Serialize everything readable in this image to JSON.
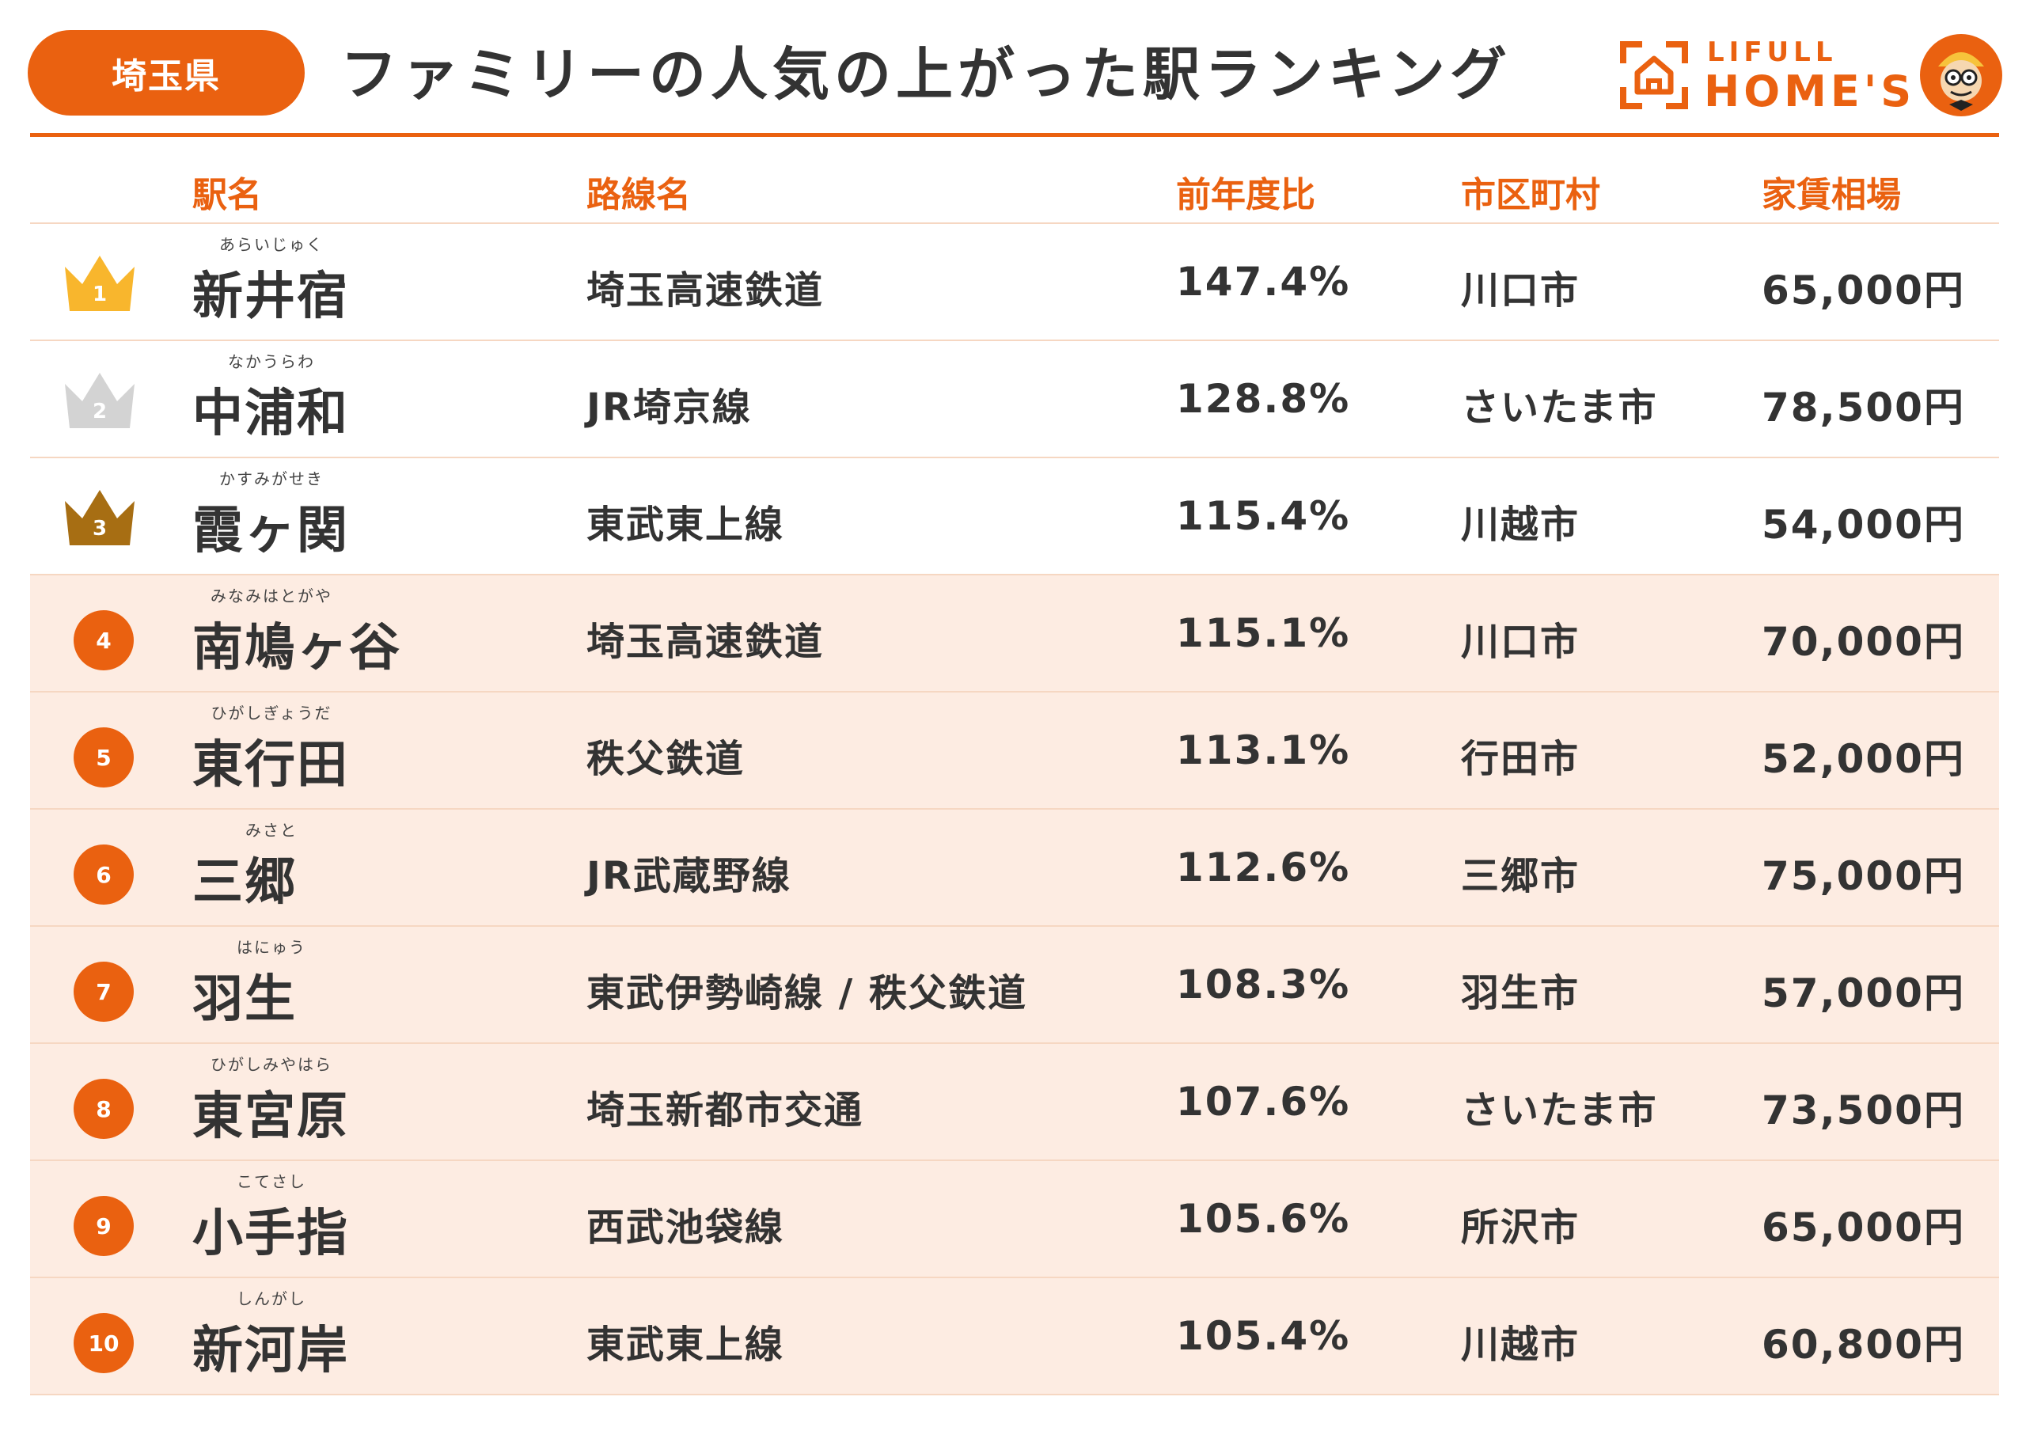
{
  "header": {
    "prefecture": "埼玉県",
    "title": "ファミリーの人気の上がった駅ランキング",
    "logo_top": "LIFULL",
    "logo_main": "HOME'S"
  },
  "columns": {
    "station": "駅名",
    "line": "路線名",
    "ratio": "前年度比",
    "city": "市区町村",
    "rent": "家賃相場"
  },
  "colors": {
    "accent": "#ea6110",
    "row_shade": "#fdece2",
    "gold": "#f8b62d",
    "silver": "#d3d3d3",
    "bronze": "#a76e13"
  },
  "rows": [
    {
      "rank": "1",
      "reading": "あらいじゅく",
      "station": "新井宿",
      "line": "埼玉高速鉄道",
      "ratio": "147.4%",
      "city": "川口市",
      "rent": "65,000円"
    },
    {
      "rank": "2",
      "reading": "なかうらわ",
      "station": "中浦和",
      "line": "JR埼京線",
      "ratio": "128.8%",
      "city": "さいたま市",
      "rent": "78,500円"
    },
    {
      "rank": "3",
      "reading": "かすみがせき",
      "station": "霞ヶ関",
      "line": "東武東上線",
      "ratio": "115.4%",
      "city": "川越市",
      "rent": "54,000円"
    },
    {
      "rank": "4",
      "reading": "みなみはとがや",
      "station": "南鳩ヶ谷",
      "line": "埼玉高速鉄道",
      "ratio": "115.1%",
      "city": "川口市",
      "rent": "70,000円"
    },
    {
      "rank": "5",
      "reading": "ひがしぎょうだ",
      "station": "東行田",
      "line": "秩父鉄道",
      "ratio": "113.1%",
      "city": "行田市",
      "rent": "52,000円"
    },
    {
      "rank": "6",
      "reading": "みさと",
      "station": "三郷",
      "line": "JR武蔵野線",
      "ratio": "112.6%",
      "city": "三郷市",
      "rent": "75,000円"
    },
    {
      "rank": "7",
      "reading": "はにゅう",
      "station": "羽生",
      "line": "東武伊勢崎線 / 秩父鉄道",
      "ratio": "108.3%",
      "city": "羽生市",
      "rent": "57,000円"
    },
    {
      "rank": "8",
      "reading": "ひがしみやはら",
      "station": "東宮原",
      "line": "埼玉新都市交通",
      "ratio": "107.6%",
      "city": "さいたま市",
      "rent": "73,500円"
    },
    {
      "rank": "9",
      "reading": "こてさし",
      "station": "小手指",
      "line": "西武池袋線",
      "ratio": "105.6%",
      "city": "所沢市",
      "rent": "65,000円"
    },
    {
      "rank": "10",
      "reading": "しんがし",
      "station": "新河岸",
      "line": "東武東上線",
      "ratio": "105.4%",
      "city": "川越市",
      "rent": "60,800円"
    }
  ]
}
